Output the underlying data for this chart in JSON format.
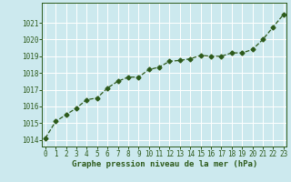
{
  "x": [
    0,
    1,
    2,
    3,
    4,
    5,
    6,
    7,
    8,
    9,
    10,
    11,
    12,
    13,
    14,
    15,
    16,
    17,
    18,
    19,
    20,
    21,
    22,
    23
  ],
  "y": [
    1014.1,
    1015.1,
    1015.5,
    1015.9,
    1016.4,
    1016.5,
    1017.1,
    1017.5,
    1017.75,
    1017.75,
    1018.2,
    1018.35,
    1018.7,
    1018.75,
    1018.85,
    1019.05,
    1019.0,
    1019.0,
    1019.2,
    1019.2,
    1019.4,
    1020.0,
    1020.75,
    1021.5
  ],
  "line_color": "#2d5a1b",
  "marker": "D",
  "marker_size": 2.5,
  "line_width": 0.9,
  "line_style": "--",
  "bg_color": "#cce9ee",
  "grid_color": "#ffffff",
  "ylabel_ticks": [
    1014,
    1015,
    1016,
    1017,
    1018,
    1019,
    1020,
    1021
  ],
  "xlabel_ticks": [
    0,
    1,
    2,
    3,
    4,
    5,
    6,
    7,
    8,
    9,
    10,
    11,
    12,
    13,
    14,
    15,
    16,
    17,
    18,
    19,
    20,
    21,
    22,
    23
  ],
  "xlabel_labels": [
    "0",
    "1",
    "2",
    "3",
    "4",
    "5",
    "6",
    "7",
    "8",
    "9",
    "10",
    "11",
    "12",
    "13",
    "14",
    "15",
    "16",
    "17",
    "18",
    "19",
    "20",
    "21",
    "22",
    "23"
  ],
  "xlabel": "Graphe pression niveau de la mer (hPa)",
  "xlabel_color": "#2d5a1b",
  "xlabel_fontsize": 6.5,
  "tick_color": "#2d5a1b",
  "tick_fontsize": 5.5,
  "xlim": [
    -0.3,
    23.3
  ],
  "ylim": [
    1013.6,
    1022.2
  ]
}
